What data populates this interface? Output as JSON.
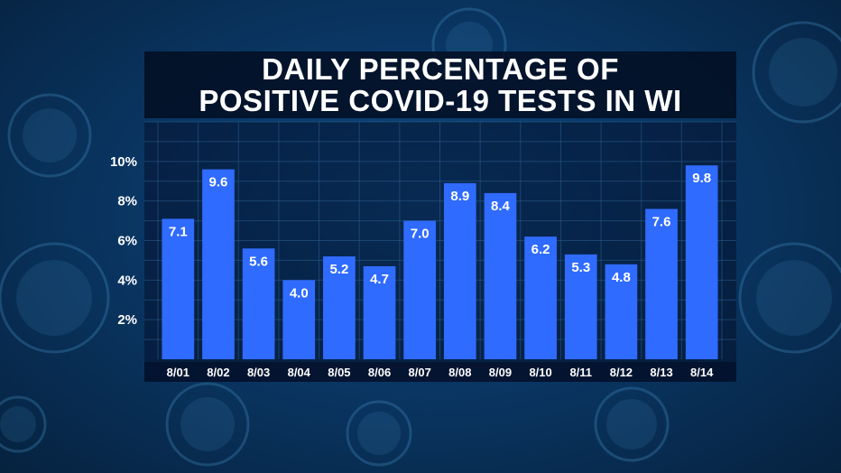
{
  "colors": {
    "bar": "#2f6bff",
    "panel": "#03112b",
    "grid": "#2c5f8e",
    "text": "#ffffff"
  },
  "chart_data": {
    "type": "bar",
    "title": "DAILY PERCENTAGE OF POSITIVE COVID-19 TESTS IN WI",
    "title_lines": [
      "DAILY PERCENTAGE OF",
      "POSITIVE COVID-19 TESTS IN WI"
    ],
    "categories": [
      "8/01",
      "8/02",
      "8/03",
      "8/04",
      "8/05",
      "8/06",
      "8/07",
      "8/08",
      "8/09",
      "8/10",
      "8/11",
      "8/12",
      "8/13",
      "8/14"
    ],
    "values": [
      7.1,
      9.6,
      5.6,
      4.0,
      5.2,
      4.7,
      7.0,
      8.9,
      8.4,
      6.2,
      5.3,
      4.8,
      7.6,
      9.8
    ],
    "value_labels": [
      "7.1",
      "9.6",
      "5.6",
      "4.0",
      "5.2",
      "4.7",
      "7.0",
      "8.9",
      "8.4",
      "6.2",
      "5.3",
      "4.8",
      "7.6",
      "9.8"
    ],
    "yticks": [
      2,
      4,
      6,
      8,
      10
    ],
    "ytick_labels": [
      "2%",
      "4%",
      "6%",
      "8%",
      "10%"
    ],
    "ylim": [
      0,
      12
    ],
    "xlabel": "",
    "ylabel": "",
    "grid": true,
    "legend": "none"
  }
}
